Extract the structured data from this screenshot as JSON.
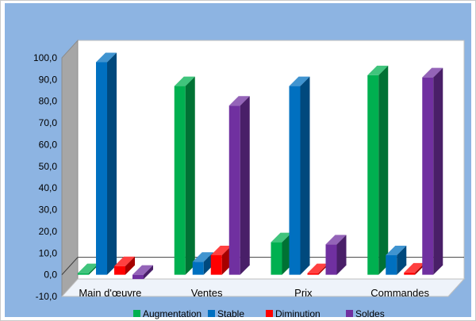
{
  "chart_data": {
    "type": "bar",
    "three_d": true,
    "categories": [
      "Main d'œuvre",
      "Ventes",
      "Prix",
      "Commandes"
    ],
    "series": [
      {
        "name": "Augmentation",
        "color": "#00b050",
        "values": [
          0.5,
          87,
          15,
          92
        ]
      },
      {
        "name": "Stable",
        "color": "#0070c0",
        "values": [
          98,
          6,
          87,
          9
        ]
      },
      {
        "name": "Diminution",
        "color": "#ff0000",
        "values": [
          4,
          9,
          0.5,
          1
        ]
      },
      {
        "name": "Soldes",
        "color": "#7030a0",
        "values": [
          -2,
          78,
          14,
          91
        ]
      }
    ],
    "yticks": [
      "-10,0",
      "0,0",
      "10,0",
      "20,0",
      "30,0",
      "40,0",
      "50,0",
      "60,0",
      "70,0",
      "80,0",
      "90,0",
      "100,0"
    ],
    "ylim": [
      -10,
      100
    ],
    "title": "",
    "xlabel": "",
    "ylabel": "",
    "grid": false,
    "legend_position": "bottom"
  }
}
